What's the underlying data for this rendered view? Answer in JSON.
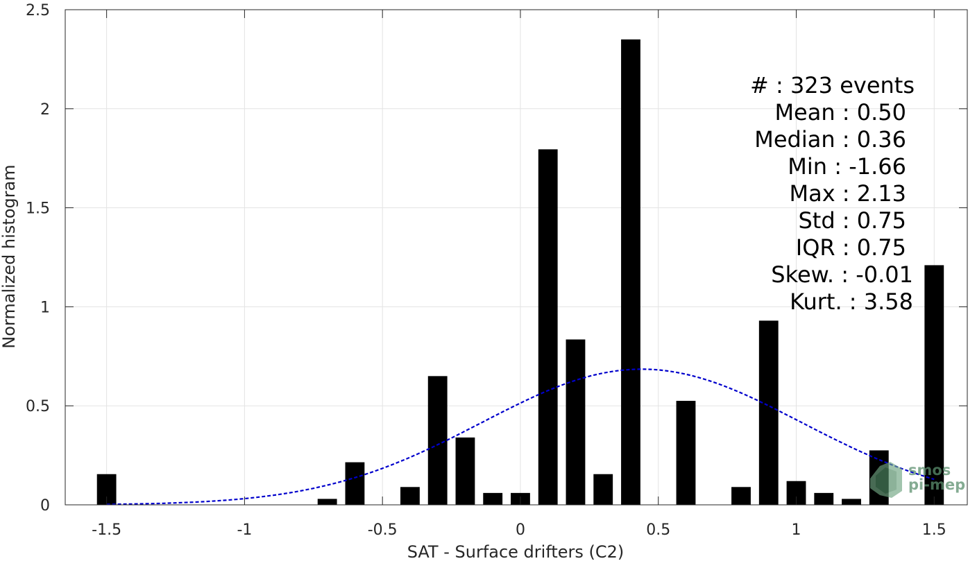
{
  "chart_data": {
    "type": "bar",
    "title": "",
    "xlabel": "SAT - Surface drifters (C2)",
    "ylabel": "Normalized histogram",
    "xlim": [
      -1.65,
      1.62
    ],
    "ylim": [
      0,
      2.5
    ],
    "grid": true,
    "x_ticks": [
      -1.5,
      -1,
      -0.5,
      0,
      0.5,
      1,
      1.5
    ],
    "x_tick_labels": [
      "-1.5",
      "-1",
      "-0.5",
      "0",
      "0.5",
      "1",
      "1.5"
    ],
    "y_ticks": [
      0,
      0.5,
      1,
      1.5,
      2,
      2.5
    ],
    "y_tick_labels": [
      "0",
      "0.5",
      "1",
      "1.5",
      "2",
      "2.5"
    ],
    "bar_width": 0.07,
    "bars": [
      {
        "x": -1.5,
        "y": 0.155
      },
      {
        "x": -0.7,
        "y": 0.03
      },
      {
        "x": -0.6,
        "y": 0.215
      },
      {
        "x": -0.4,
        "y": 0.09
      },
      {
        "x": -0.3,
        "y": 0.65
      },
      {
        "x": -0.2,
        "y": 0.34
      },
      {
        "x": -0.1,
        "y": 0.06
      },
      {
        "x": 0.0,
        "y": 0.06
      },
      {
        "x": 0.1,
        "y": 1.795
      },
      {
        "x": 0.2,
        "y": 0.835
      },
      {
        "x": 0.3,
        "y": 0.155
      },
      {
        "x": 0.4,
        "y": 2.35
      },
      {
        "x": 0.6,
        "y": 0.525
      },
      {
        "x": 0.8,
        "y": 0.09
      },
      {
        "x": 0.9,
        "y": 0.93
      },
      {
        "x": 1.0,
        "y": 0.12
      },
      {
        "x": 1.1,
        "y": 0.06
      },
      {
        "x": 1.2,
        "y": 0.03
      },
      {
        "x": 1.3,
        "y": 0.275
      },
      {
        "x": 1.5,
        "y": 1.21
      }
    ],
    "fit_curve": {
      "type": "gaussian",
      "mean": 0.44,
      "std": 0.58,
      "peak": 0.685,
      "x_range": [
        -1.5,
        1.5
      ],
      "color": "#0000cc",
      "style": "dashed"
    },
    "bar_color": "#000000",
    "stats_placement": "top-right",
    "stats": [
      "#  : 323 events",
      "Mean : 0.50",
      "Median : 0.36",
      "Min : -1.66",
      "Max : 2.13",
      "Std : 0.75",
      "IQR : 0.75",
      "Skew. : -0.01",
      "Kurt. : 3.58"
    ]
  },
  "watermark": {
    "line1": "smos",
    "line2": "pi-mep",
    "icon": "terrain-logo-icon",
    "color": "#5b8f6e"
  }
}
